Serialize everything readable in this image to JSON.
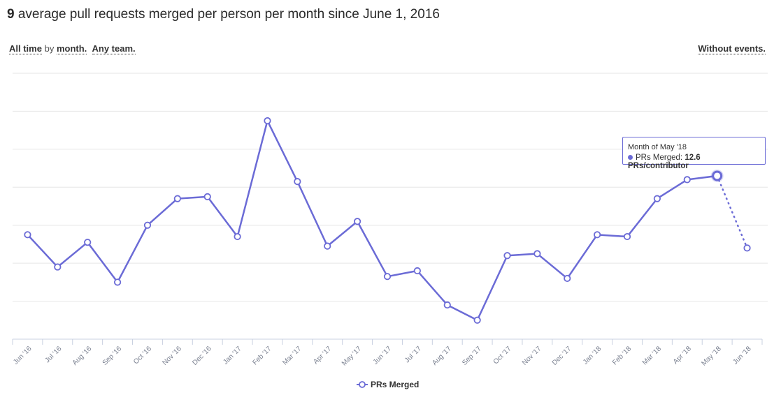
{
  "header": {
    "title_value": "9",
    "title_text": " average pull requests merged per person per month since June 1, 2016"
  },
  "filters": {
    "time": "All time",
    "by": "by",
    "period": "month.",
    "team": "Any team.",
    "events": "Without events."
  },
  "tooltip": {
    "heading": "Month of May '18",
    "label": "PRs Merged:",
    "value": "12.6 PRs/contributor"
  },
  "colors": {
    "line": "#6b6bd6",
    "grid": "#e6e6e6",
    "axis": "#c8d0e0"
  },
  "chart_data": {
    "type": "line",
    "title": "9 average pull requests merged per person per month since June 1, 2016",
    "xlabel": "",
    "ylabel": "PRs/contributor",
    "ylim": [
      4,
      18
    ],
    "grid": true,
    "legend": "bottom",
    "categories": [
      "Jun '16",
      "Jul '16",
      "Aug '16",
      "Sep '16",
      "Oct '16",
      "Nov '16",
      "Dec '16",
      "Jan '17",
      "Feb '17",
      "Mar '17",
      "Apr '17",
      "May '17",
      "Jun '17",
      "Jul '17",
      "Aug '17",
      "Sep '17",
      "Oct '17",
      "Nov '17",
      "Dec '17",
      "Jan '18",
      "Feb '18",
      "Mar '18",
      "Apr '18",
      "May '18",
      "Jun '18"
    ],
    "series": [
      {
        "name": "PRs Merged",
        "values": [
          9.5,
          7.8,
          9.1,
          7.0,
          10.0,
          11.4,
          11.5,
          9.4,
          15.5,
          12.3,
          8.9,
          10.2,
          7.3,
          7.6,
          5.8,
          5.0,
          8.4,
          8.5,
          7.2,
          9.5,
          9.4,
          11.4,
          12.4,
          12.6,
          8.8
        ]
      }
    ],
    "highlighted": "May '18",
    "partial_last_period": true
  }
}
